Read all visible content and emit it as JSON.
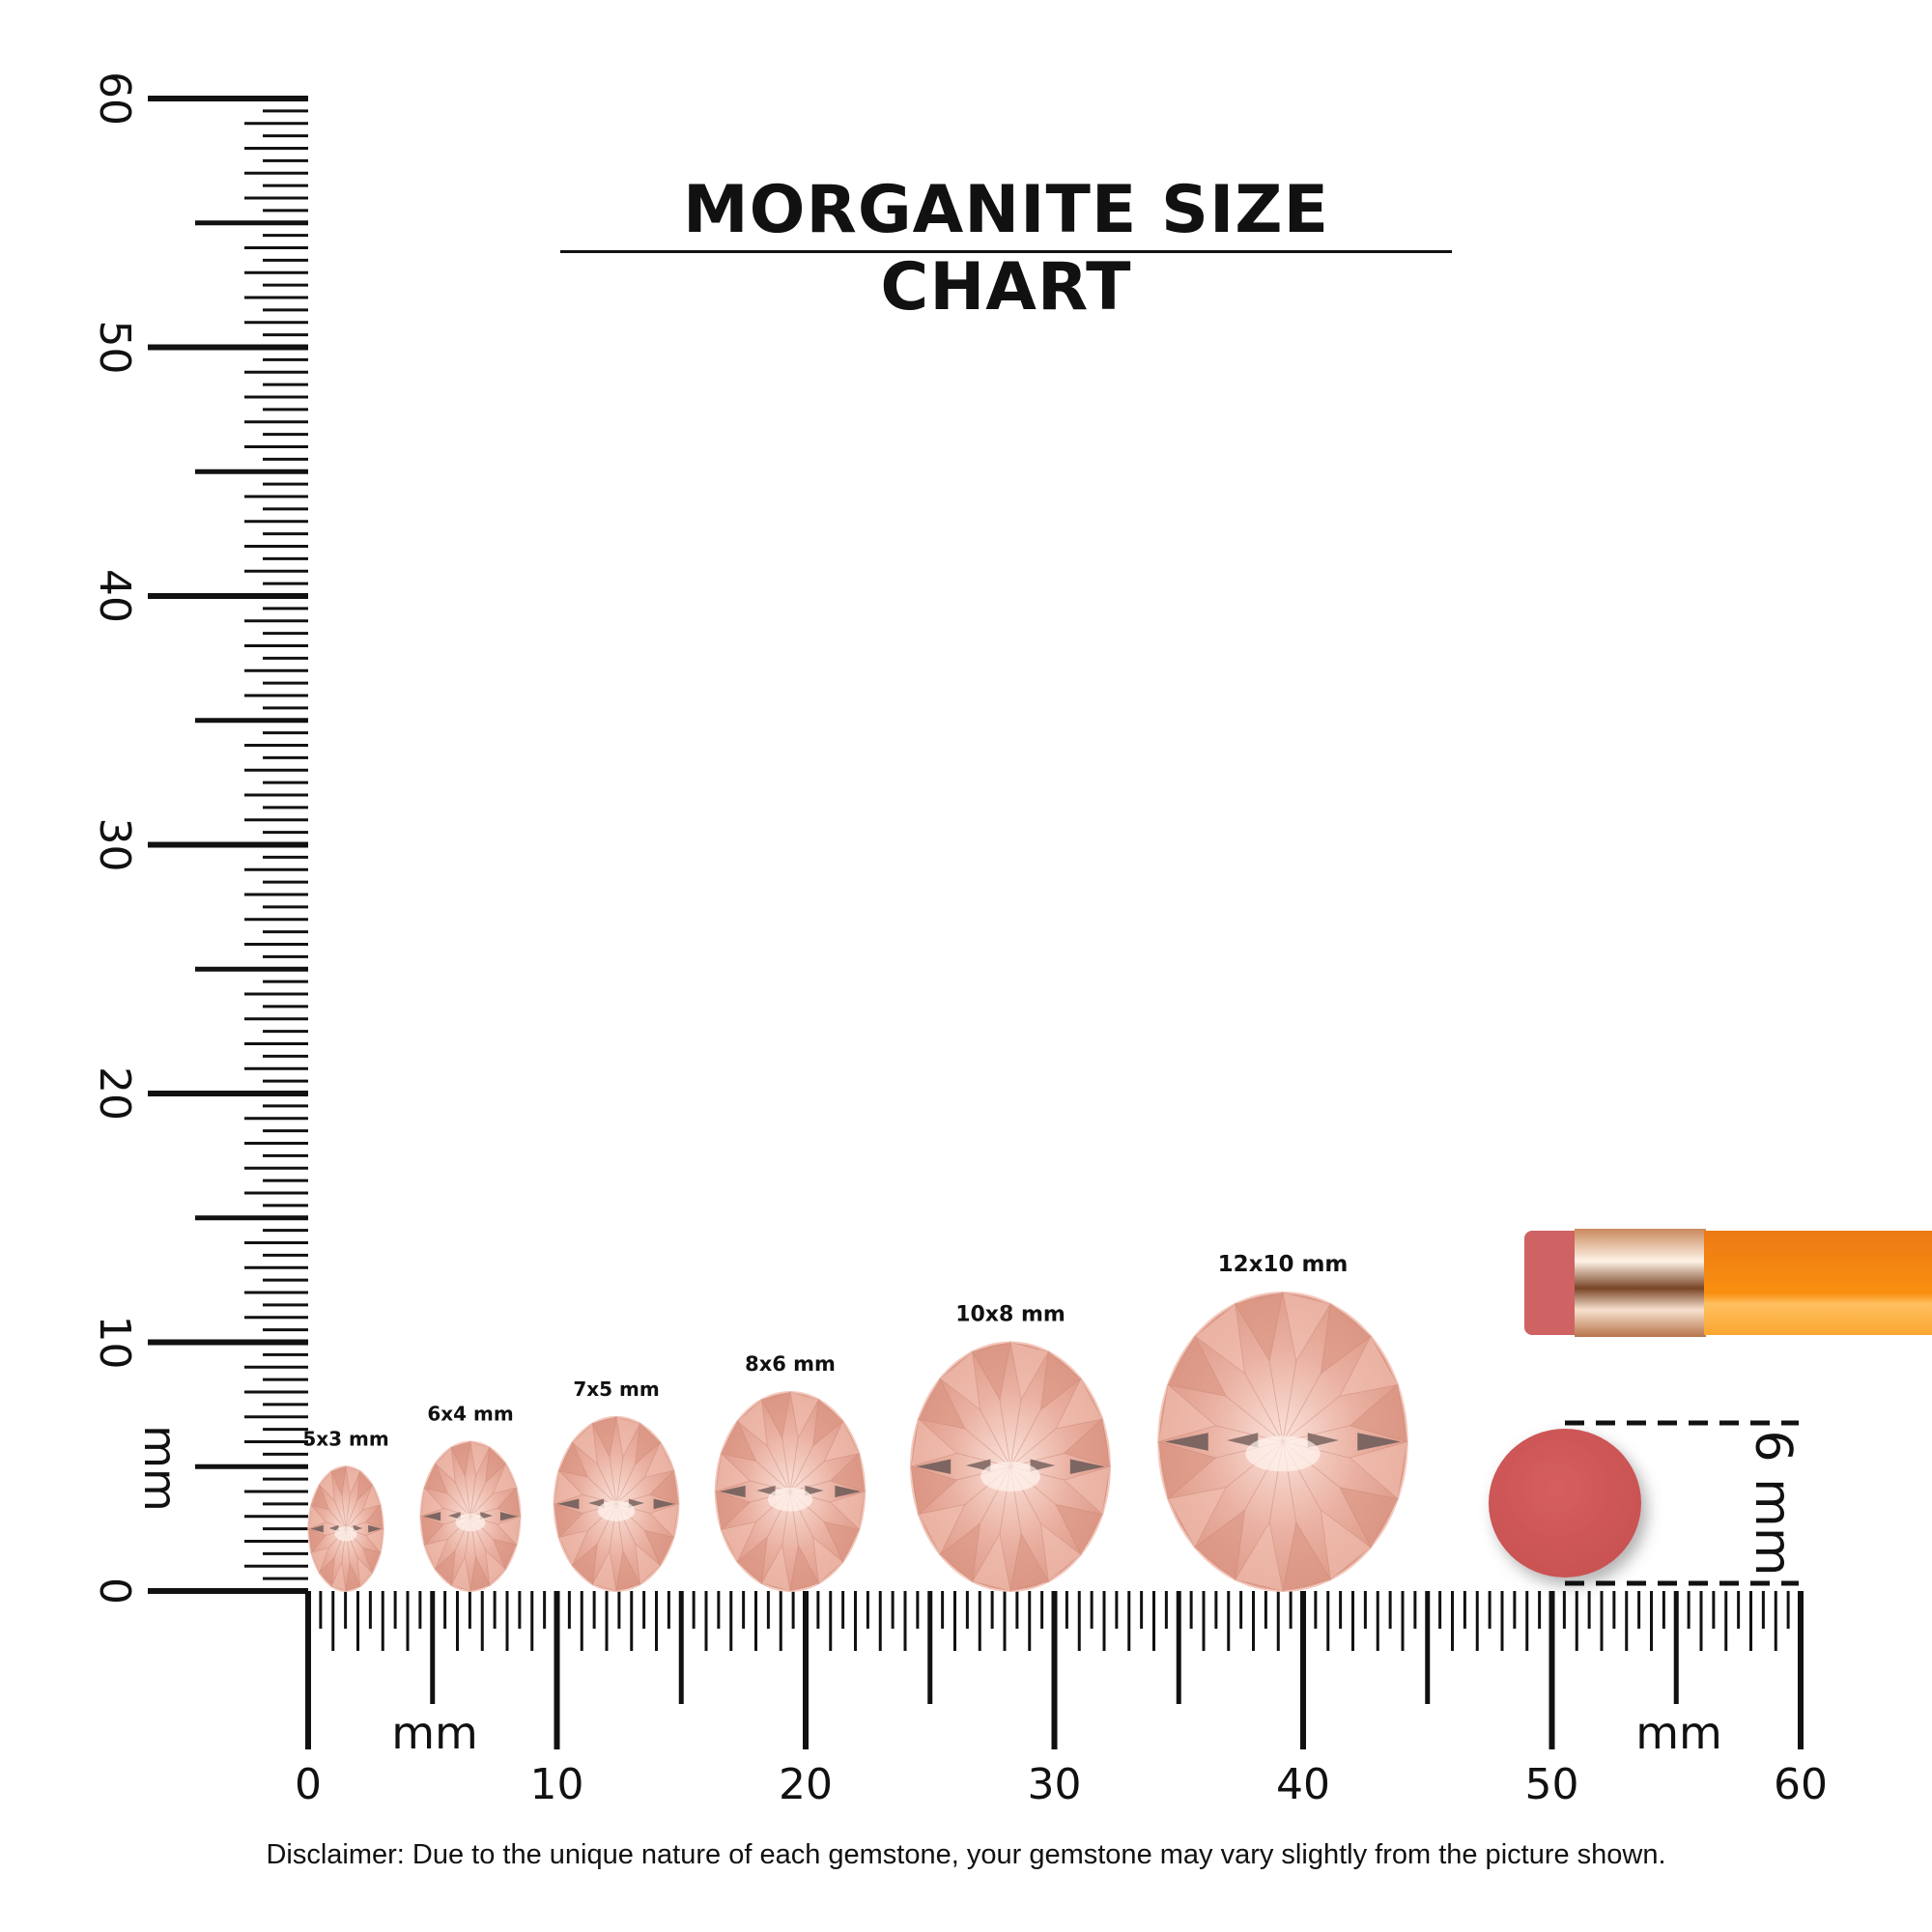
{
  "title": "MORGANITE SIZE CHART",
  "disclaimer": "Disclaimer: Due to the unique nature of each gemstone, your gemstone may vary slightly from the picture shown.",
  "ruler": {
    "unit_label": "mm",
    "range_mm": [
      0,
      60
    ],
    "major_step_mm": 10,
    "vertical_labels": [
      "0",
      "10",
      "20",
      "30",
      "40",
      "50",
      "60"
    ],
    "horizontal_labels": [
      "0",
      "10",
      "20",
      "30",
      "40",
      "50",
      "60"
    ]
  },
  "gemstones": [
    {
      "label": "5x3 mm",
      "length_mm": 5,
      "width_mm": 3
    },
    {
      "label": "6x4 mm",
      "length_mm": 6,
      "width_mm": 4
    },
    {
      "label": "7x5 mm",
      "length_mm": 7,
      "width_mm": 5
    },
    {
      "label": "8x6 mm",
      "length_mm": 8,
      "width_mm": 6
    },
    {
      "label": "10x8 mm",
      "length_mm": 10,
      "width_mm": 8
    },
    {
      "label": "12x10 mm",
      "length_mm": 12,
      "width_mm": 10
    }
  ],
  "reference": {
    "eraser_label": "6 mm",
    "eraser_diameter_mm": 6
  },
  "colors": {
    "gem": "#e8a595",
    "gem_light": "#f7d6cc",
    "eraser": "#d05a5a",
    "pencil": "#f7941d",
    "ferrule": "#d79a6e",
    "ink": "#111111"
  }
}
